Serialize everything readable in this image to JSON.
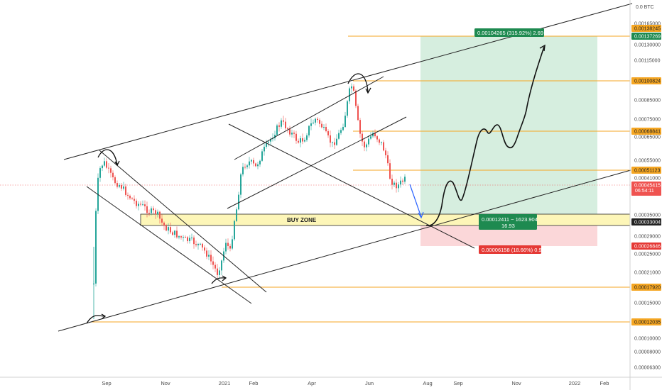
{
  "chart_data": {
    "type": "candlestick",
    "currency_label": "0.0 BTC",
    "y_ticks": [
      "0.00165000",
      "0.00130000",
      "0.00115000",
      "0.00085000",
      "0.00075000",
      "0.00065000",
      "0.00055000",
      "0.00041000",
      "0.00035000",
      "0.00029000",
      "0.00025000",
      "0.00021000",
      "0.00015000",
      "0.00010000",
      "0.00008000",
      "0.00006300"
    ],
    "x_ticks": [
      "Sep",
      "Nov",
      "2021",
      "Feb",
      "Apr",
      "Jun",
      "Aug",
      "Sep",
      "Nov",
      "2022",
      "Feb"
    ],
    "price_levels": [
      "0.00138245",
      "0.00137269",
      "0.00100824",
      "0.00068841",
      "0.00051123",
      "0.00045415",
      "0.00033004",
      "0.00026846",
      "0.00017920",
      "0.00012035"
    ],
    "countdown": "06:54:11",
    "annotation": "BUY ZONE",
    "long_position": {
      "target_label": "0.00104265 (315.92%) 2.69",
      "entry_label_line1": "0.00012411 ~ 1623.904",
      "entry_label_line2": "16.93",
      "stop_label": "0.00006158 (18.66%) 0.9"
    },
    "colors": {
      "up": "#26a69a",
      "down": "#ef5350",
      "level": "#f5a623",
      "target_zone": "#d6eedf",
      "stop_zone": "#fbd7d9",
      "buy_zone": "#fdf6b8"
    }
  }
}
